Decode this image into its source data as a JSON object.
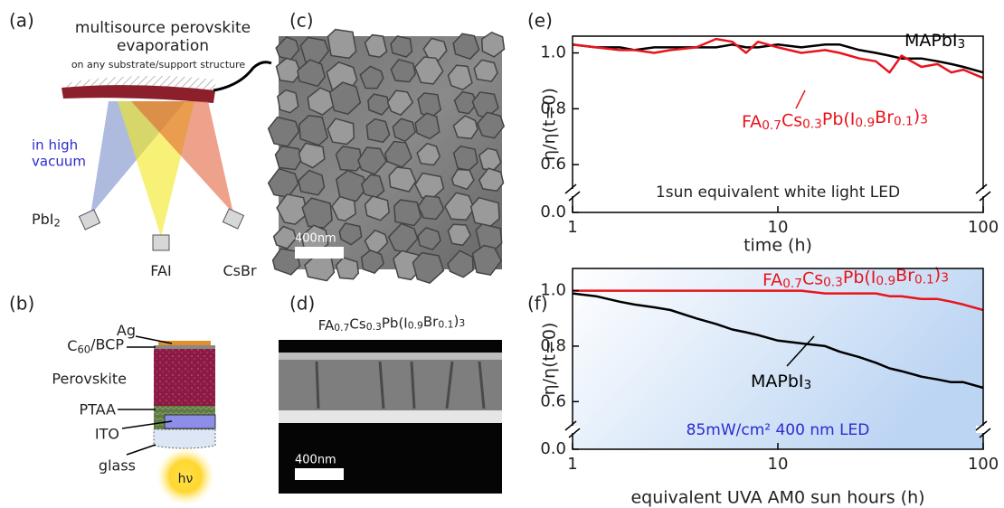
{
  "panels": {
    "a": {
      "label": "(a)",
      "title_lines": [
        "multisource perovskite",
        "evaporation"
      ],
      "note": "on any substrate/support structure",
      "vacuum_lines": [
        "in high",
        "vacuum"
      ],
      "sources": [
        "PbI2",
        "FAI",
        "CsBr"
      ]
    },
    "b": {
      "label": "(b)",
      "layers": [
        "Ag",
        "C60/BCP",
        "Perovskite",
        "PTAA",
        "ITO",
        "glass"
      ],
      "light": "hν"
    },
    "c": {
      "label": "(c)",
      "scale_bar": "400nm"
    },
    "d": {
      "label": "(d)",
      "title": "FA0.7Cs0.3Pb(I0.9Br0.1)3",
      "scale_bar": "400nm"
    },
    "e": {
      "label": "(e)"
    },
    "f": {
      "label": "(f)"
    }
  },
  "chart_data": [
    {
      "type": "line",
      "xlabel": "time (h)",
      "ylabel": "η/η(t=0)",
      "annotation": "1sun equivalent white light LED",
      "x": [
        1,
        1.3,
        1.7,
        2,
        2.5,
        3,
        4,
        5,
        6,
        7,
        8,
        10,
        13,
        17,
        20,
        25,
        30,
        35,
        40,
        50,
        60,
        70,
        80,
        100
      ],
      "series": [
        {
          "name": "MAPbI3",
          "color": "#000000",
          "values": [
            1.03,
            1.02,
            1.02,
            1.01,
            1.02,
            1.02,
            1.02,
            1.02,
            1.03,
            1.02,
            1.02,
            1.03,
            1.02,
            1.03,
            1.03,
            1.01,
            1.0,
            0.99,
            0.98,
            0.98,
            0.97,
            0.96,
            0.95,
            0.93
          ]
        },
        {
          "name": "FA0.7Cs0.3Pb(I0.9Br0.1)3",
          "color": "#e8141b",
          "values": [
            1.03,
            1.02,
            1.01,
            1.01,
            1.0,
            1.01,
            1.02,
            1.05,
            1.04,
            1.0,
            1.04,
            1.02,
            1.0,
            1.01,
            1.0,
            0.98,
            0.97,
            0.93,
            0.99,
            0.95,
            0.96,
            0.93,
            0.94,
            0.91
          ]
        }
      ],
      "xlim": [
        1,
        100
      ],
      "xticks": [
        1,
        10,
        100
      ],
      "xlog": true,
      "ylim": [
        0,
        1.06
      ],
      "yticks": [
        {
          "value": 0,
          "label": "0.0"
        },
        {
          "value": 0.6,
          "label": "0.6"
        },
        {
          "value": 0.8,
          "label": "0.8"
        },
        {
          "value": 1,
          "label": "1.0"
        }
      ],
      "axis_break": true,
      "plot_background": [
        "#ffffff",
        "#ffffff"
      ]
    },
    {
      "type": "line",
      "xlabel": "equivalent UVA AM0 sun hours (h)",
      "ylabel": "η/η(t=0)",
      "annotation": "85mW/cm² 400 nm LED",
      "x": [
        1,
        1.3,
        1.7,
        2,
        2.5,
        3,
        4,
        5,
        6,
        7,
        8,
        10,
        13,
        17,
        20,
        25,
        30,
        35,
        40,
        50,
        60,
        70,
        80,
        100
      ],
      "series": [
        {
          "name": "FA0.7Cs0.3Pb(I0.9Br0.1)3",
          "color": "#e8141b",
          "values": [
            1.0,
            1.0,
            1.0,
            1.0,
            1.0,
            1.0,
            1.0,
            1.0,
            1.0,
            1.0,
            1.0,
            1.0,
            1.0,
            0.99,
            0.99,
            0.99,
            0.99,
            0.98,
            0.98,
            0.97,
            0.97,
            0.96,
            0.95,
            0.93
          ]
        },
        {
          "name": "MAPbI3",
          "color": "#000000",
          "values": [
            0.99,
            0.98,
            0.96,
            0.95,
            0.94,
            0.93,
            0.9,
            0.88,
            0.86,
            0.85,
            0.84,
            0.82,
            0.81,
            0.8,
            0.78,
            0.76,
            0.74,
            0.72,
            0.71,
            0.69,
            0.68,
            0.67,
            0.67,
            0.65
          ]
        }
      ],
      "xlim": [
        1,
        100
      ],
      "xticks": [
        1,
        10,
        100
      ],
      "xlog": true,
      "ylim": [
        0,
        1.08
      ],
      "yticks": [
        {
          "value": 0,
          "label": "0.0"
        },
        {
          "value": 0.6,
          "label": "0.6"
        },
        {
          "value": 0.8,
          "label": "0.8"
        },
        {
          "value": 1,
          "label": "1.0"
        }
      ],
      "axis_break": true,
      "plot_background": [
        "#ffffff",
        "#bcd5f3"
      ]
    }
  ]
}
